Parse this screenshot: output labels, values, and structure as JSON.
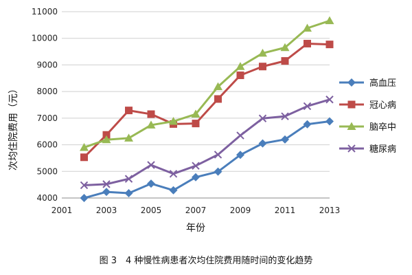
{
  "chart_data": {
    "type": "line",
    "xlabel": "年份",
    "ylabel": "次均住院费用（元）",
    "caption": "图 3　4 种慢性病患者次均住院费用随时间的变化趋势",
    "xlim": [
      2001,
      2013
    ],
    "ylim": [
      4000,
      11000
    ],
    "x_ticks": [
      "2001",
      "2003",
      "2005",
      "2007",
      "2009",
      "2011",
      "2013"
    ],
    "y_ticks": [
      "4000",
      "5000",
      "6000",
      "7000",
      "8000",
      "9000",
      "10000",
      "11000"
    ],
    "grid": "horizontal",
    "legend_position": "right",
    "x": [
      2002,
      2003,
      2004,
      2005,
      2006,
      2007,
      2008,
      2009,
      2010,
      2011,
      2012,
      2013
    ],
    "series": [
      {
        "name": "高血压",
        "color": "#4a7ebb",
        "marker": "diamond",
        "values": [
          4000,
          4230,
          4180,
          4540,
          4290,
          4780,
          4990,
          5620,
          6050,
          6200,
          6770,
          6880
        ]
      },
      {
        "name": "冠心病",
        "color": "#be4b48",
        "marker": "square",
        "values": [
          5530,
          6370,
          7290,
          7150,
          6780,
          6800,
          7720,
          8610,
          8940,
          9150,
          9800,
          9770
        ]
      },
      {
        "name": "脑卒中",
        "color": "#98b954",
        "marker": "triangle",
        "values": [
          5900,
          6190,
          6250,
          6740,
          6880,
          7150,
          8180,
          8940,
          9440,
          9650,
          10380,
          10660
        ]
      },
      {
        "name": "糖尿病",
        "color": "#7d60a0",
        "marker": "x",
        "values": [
          4480,
          4520,
          4720,
          5240,
          4910,
          5210,
          5630,
          6350,
          6990,
          7070,
          7450,
          7700
        ]
      }
    ]
  }
}
